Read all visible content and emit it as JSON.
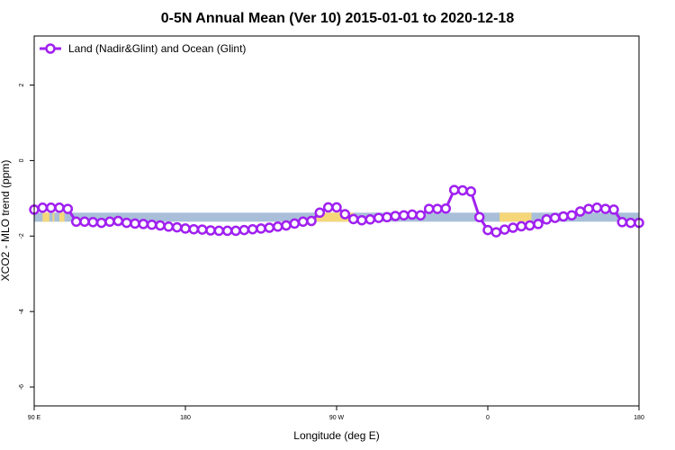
{
  "chart_data": {
    "type": "line",
    "title": "0-5N Annual Mean (Ver 10)   2015-01-01 to 2020-12-18",
    "xlabel": "Longitude (deg E)",
    "ylabel": "XCO2 - MLO trend (ppm)",
    "xlim": [
      90,
      450
    ],
    "ylim": [
      -6.5,
      3.3
    ],
    "x_ticks": [
      {
        "value": 90,
        "label": "90 E"
      },
      {
        "value": 180,
        "label": "180"
      },
      {
        "value": 270,
        "label": "90 W"
      },
      {
        "value": 360,
        "label": "0"
      },
      {
        "value": 450,
        "label": "180"
      }
    ],
    "y_ticks": [
      {
        "value": 2,
        "label": "2"
      },
      {
        "value": 0,
        "label": "0"
      },
      {
        "value": -2,
        "label": "-2"
      },
      {
        "value": -4,
        "label": "-4"
      },
      {
        "value": -6,
        "label": "-6"
      }
    ],
    "legend": {
      "position": "top-left"
    },
    "colors": {
      "line": "#a020f0",
      "land": "#f5d77a",
      "ocean": "#a9bfd9"
    },
    "surface_band": {
      "y_top": -1.38,
      "y_bottom": -1.62,
      "land_ranges": [
        [
          95,
          99
        ],
        [
          101,
          102
        ],
        [
          105,
          108
        ],
        [
          258,
          280
        ],
        [
          367,
          386
        ],
        [
          488,
          491
        ],
        [
          495,
          497
        ],
        [
          500,
          503
        ]
      ]
    },
    "series": [
      {
        "name": "Land (Nadir&Glint) and Ocean (Glint)",
        "x": [
          90,
          95,
          100,
          105,
          110,
          115,
          120,
          125,
          130,
          135,
          140,
          145,
          150,
          155,
          160,
          165,
          170,
          175,
          180,
          185,
          190,
          195,
          200,
          205,
          210,
          215,
          220,
          225,
          230,
          235,
          240,
          245,
          250,
          255,
          260,
          265,
          270,
          275,
          280,
          285,
          290,
          295,
          300,
          305,
          310,
          315,
          320,
          325,
          330,
          335,
          340,
          345,
          350,
          355,
          360,
          365,
          370,
          375,
          380,
          385,
          390,
          395,
          400,
          405,
          410,
          415,
          420,
          425,
          430,
          435,
          440,
          445,
          450
        ],
        "values": [
          -1.3,
          -1.25,
          -1.25,
          -1.25,
          -1.28,
          -1.62,
          -1.62,
          -1.63,
          -1.65,
          -1.62,
          -1.6,
          -1.65,
          -1.67,
          -1.68,
          -1.7,
          -1.72,
          -1.75,
          -1.77,
          -1.8,
          -1.82,
          -1.83,
          -1.85,
          -1.86,
          -1.86,
          -1.86,
          -1.84,
          -1.82,
          -1.8,
          -1.78,
          -1.75,
          -1.72,
          -1.67,
          -1.62,
          -1.6,
          -1.38,
          -1.24,
          -1.24,
          -1.42,
          -1.55,
          -1.58,
          -1.56,
          -1.52,
          -1.5,
          -1.47,
          -1.45,
          -1.43,
          -1.45,
          -1.28,
          -1.28,
          -1.27,
          -0.78,
          -0.79,
          -0.82,
          -1.5,
          -1.84,
          -1.9,
          -1.83,
          -1.78,
          -1.74,
          -1.72,
          -1.68,
          -1.56,
          -1.52,
          -1.48,
          -1.45,
          -1.35,
          -1.28,
          -1.25,
          -1.28,
          -1.3,
          -1.63,
          -1.65,
          -1.65
        ]
      }
    ]
  }
}
